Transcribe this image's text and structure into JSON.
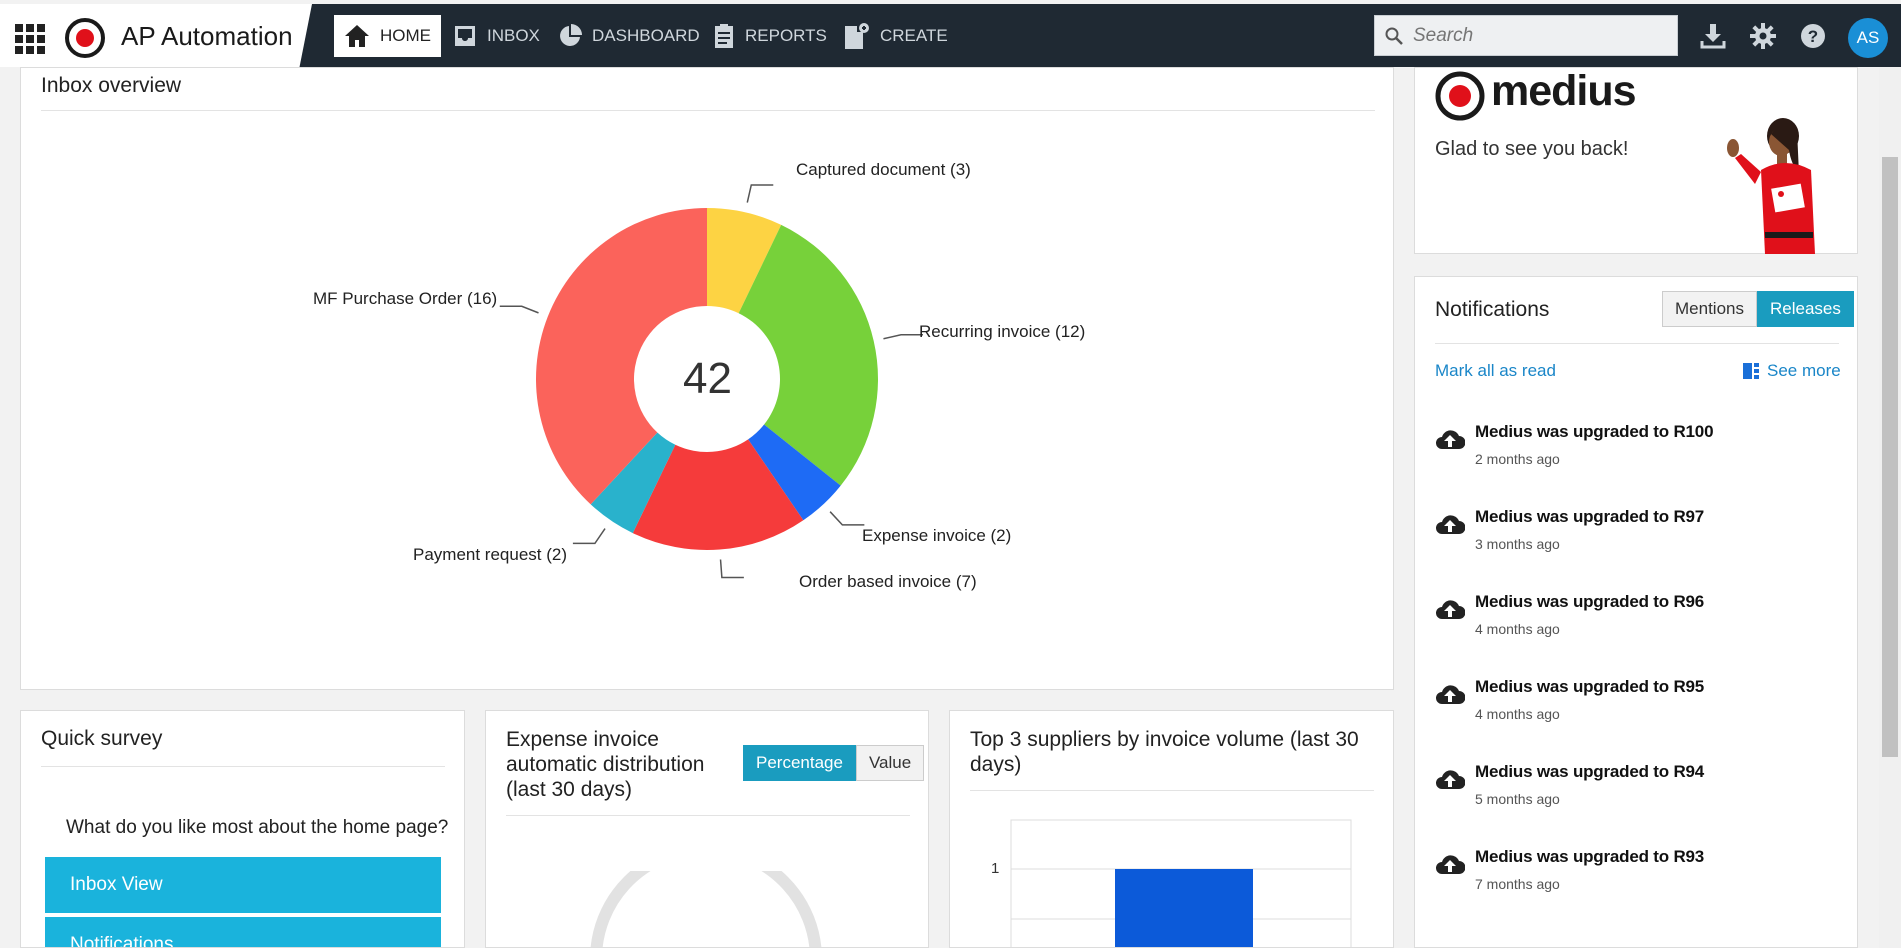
{
  "header": {
    "app_name": "AP Automation",
    "nav": [
      {
        "label": "HOME",
        "icon": "home-icon",
        "active": true
      },
      {
        "label": "INBOX",
        "icon": "inbox-icon",
        "active": false
      },
      {
        "label": "DASHBOARD",
        "icon": "pie-chart-icon",
        "active": false
      },
      {
        "label": "REPORTS",
        "icon": "clipboard-icon",
        "active": false
      },
      {
        "label": "CREATE",
        "icon": "new-document-icon",
        "active": false
      }
    ],
    "search_placeholder": "Search",
    "user_initials": "AS",
    "colors": {
      "bar": "#1f2933",
      "avatar": "#1a8fd6"
    }
  },
  "inbox_overview": {
    "title": "Inbox overview",
    "total": "42",
    "labels": {
      "captured": "Captured document (3)",
      "recurring": "Recurring invoice (12)",
      "expense": "Expense invoice (2)",
      "order": "Order based invoice (7)",
      "payment": "Payment request (2)",
      "mf": "MF Purchase Order (16)"
    }
  },
  "chart_data": {
    "type": "pie",
    "title": "",
    "center_value": 42,
    "slices": [
      {
        "name": "Captured document",
        "value": 3,
        "color": "#fdd343"
      },
      {
        "name": "Recurring invoice",
        "value": 12,
        "color": "#77d13a"
      },
      {
        "name": "Expense invoice",
        "value": 2,
        "color": "#1e6bf5"
      },
      {
        "name": "Order based invoice",
        "value": 7,
        "color": "#f53b3b"
      },
      {
        "name": "Payment request",
        "value": 2,
        "color": "#29b2cc"
      },
      {
        "name": "MF Purchase Order",
        "value": 16,
        "color": "#fb635b"
      }
    ]
  },
  "welcome": {
    "brand": "medius",
    "message": "Glad to see you back!"
  },
  "notifications": {
    "title": "Notifications",
    "tab_mentions": "Mentions",
    "tab_releases": "Releases",
    "mark_all": "Mark all as read",
    "see_more": "See more",
    "items": [
      {
        "title": "Medius was upgraded to R100",
        "time": "2 months ago"
      },
      {
        "title": "Medius was upgraded to R97",
        "time": "3 months ago"
      },
      {
        "title": "Medius was upgraded to R96",
        "time": "4 months ago"
      },
      {
        "title": "Medius was upgraded to R95",
        "time": "4 months ago"
      },
      {
        "title": "Medius was upgraded to R94",
        "time": "5 months ago"
      },
      {
        "title": "Medius was upgraded to R93",
        "time": "7 months ago"
      }
    ]
  },
  "survey": {
    "title": "Quick survey",
    "question": "What do you like most about the home page?",
    "options": [
      "Inbox View",
      "Notifications"
    ]
  },
  "expense_dist": {
    "title": "Expense invoice automatic distribution (last 30 days)",
    "btn_percentage": "Percentage",
    "btn_value": "Value"
  },
  "top_suppliers": {
    "title": "Top 3 suppliers by invoice volume (last 30 days)",
    "y_tick": "1"
  }
}
